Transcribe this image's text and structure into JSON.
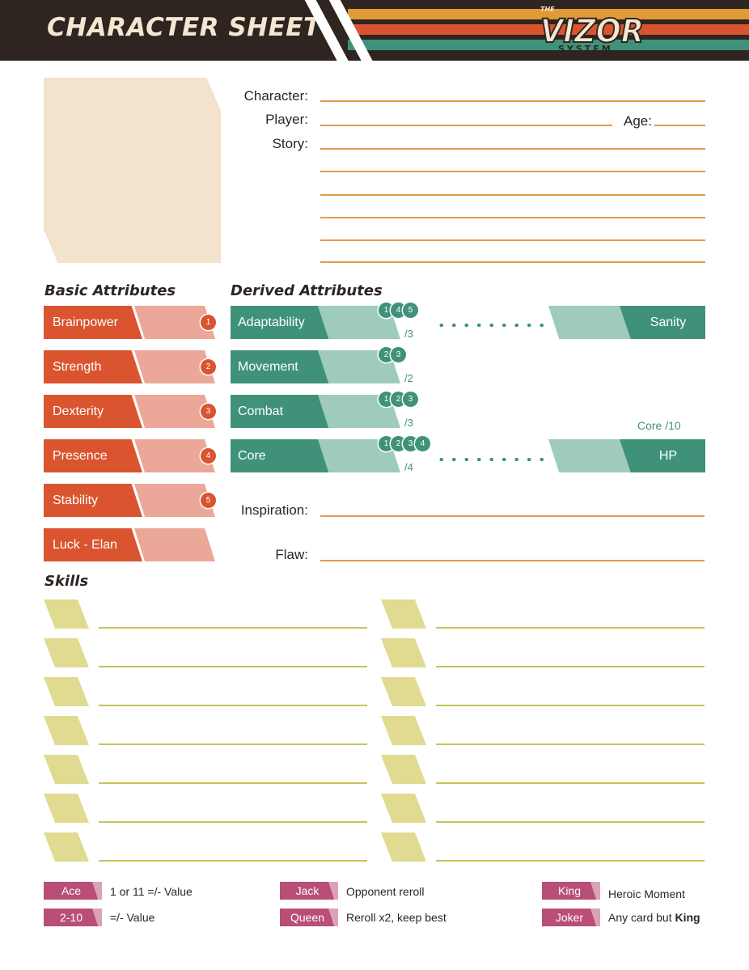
{
  "header": {
    "title": "CHARACTER SHEET",
    "logo": {
      "small_top": "THE",
      "main": "VIZOR",
      "bottom": "SYSTEM"
    },
    "stripe_colors": [
      "#e09a36",
      "#d9542f",
      "#3f9279"
    ]
  },
  "info": {
    "character_label": "Character:",
    "player_label": "Player:",
    "age_label": "Age:",
    "story_label": "Story:"
  },
  "basic": {
    "title": "Basic Attributes",
    "items": [
      {
        "label": "Brainpower",
        "num": "1"
      },
      {
        "label": "Strength",
        "num": "2"
      },
      {
        "label": "Dexterity",
        "num": "3"
      },
      {
        "label": "Presence",
        "num": "4"
      },
      {
        "label": "Stability",
        "num": "5"
      },
      {
        "label": "Luck - Elan",
        "num": ""
      }
    ]
  },
  "derived": {
    "title": "Derived Attributes",
    "items": [
      {
        "label": "Adaptability",
        "refs": [
          "1",
          "4",
          "5"
        ],
        "max": "/3"
      },
      {
        "label": "Movement",
        "refs": [
          "2",
          "3"
        ],
        "max": "/2"
      },
      {
        "label": "Combat",
        "refs": [
          "1",
          "2",
          "3"
        ],
        "max": "/3"
      },
      {
        "label": "Core",
        "refs": [
          "1",
          "2",
          "3",
          "4"
        ],
        "max": "/4"
      }
    ],
    "sanity_label": "Sanity",
    "hp_label": "HP",
    "hp_note": "Core /10",
    "inspiration_label": "Inspiration:",
    "flaw_label": "Flaw:"
  },
  "skills": {
    "title": "Skills"
  },
  "legend": [
    {
      "tag": "Ace",
      "text": "1 or 11 =/- Value"
    },
    {
      "tag": "2-10",
      "text": "=/- Value"
    },
    {
      "tag": "Jack",
      "text": "Opponent reroll"
    },
    {
      "tag": "Queen",
      "text": "Reroll x2, keep best"
    },
    {
      "tag": "King",
      "text": "Heroic Moment"
    },
    {
      "tag": "Joker",
      "text": "Any card but ",
      "bold": "King"
    }
  ],
  "colors": {
    "dark": "#2e2520",
    "orange": "#d9542f",
    "green": "#3f9279",
    "skill": "#e0db90",
    "legend": "#b94e76"
  }
}
